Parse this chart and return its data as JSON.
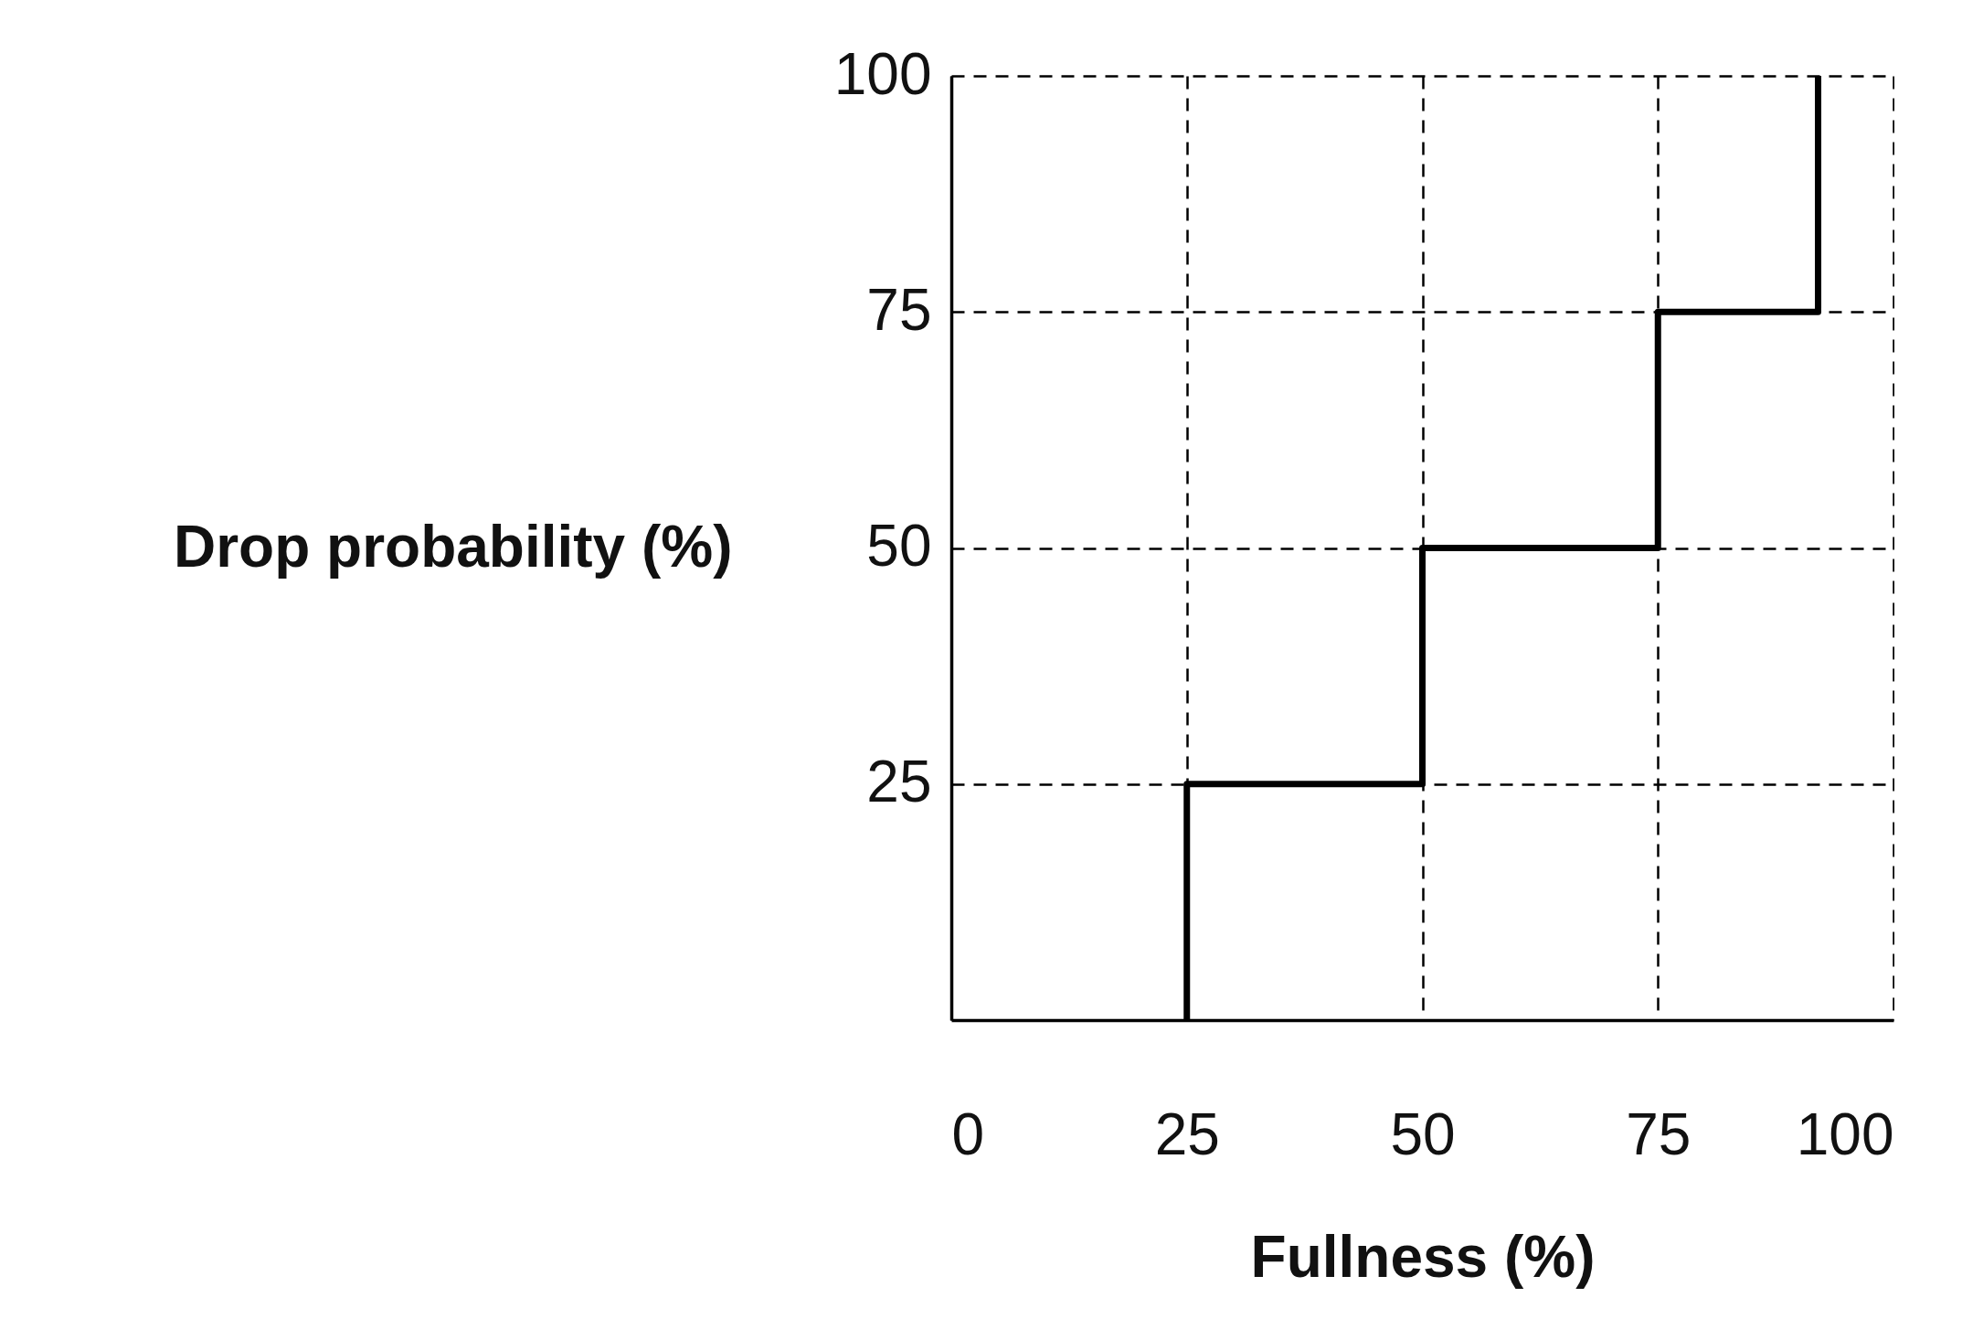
{
  "chart_data": {
    "type": "step",
    "xlabel": "Fullness (%)",
    "ylabel": "Drop probability (%)",
    "x": [
      25,
      25,
      50,
      75,
      92
    ],
    "series": [
      {
        "color": "#000000",
        "values": [
          0,
          25,
          50,
          75,
          100
        ]
      }
    ],
    "xlim": [
      0,
      100
    ],
    "xticks": [
      0,
      25,
      50,
      75,
      100
    ],
    "ylim": [
      0,
      100
    ],
    "yticks": [
      25,
      50,
      75,
      100
    ],
    "grid": true,
    "marker": "none",
    "line_style": "solid"
  }
}
